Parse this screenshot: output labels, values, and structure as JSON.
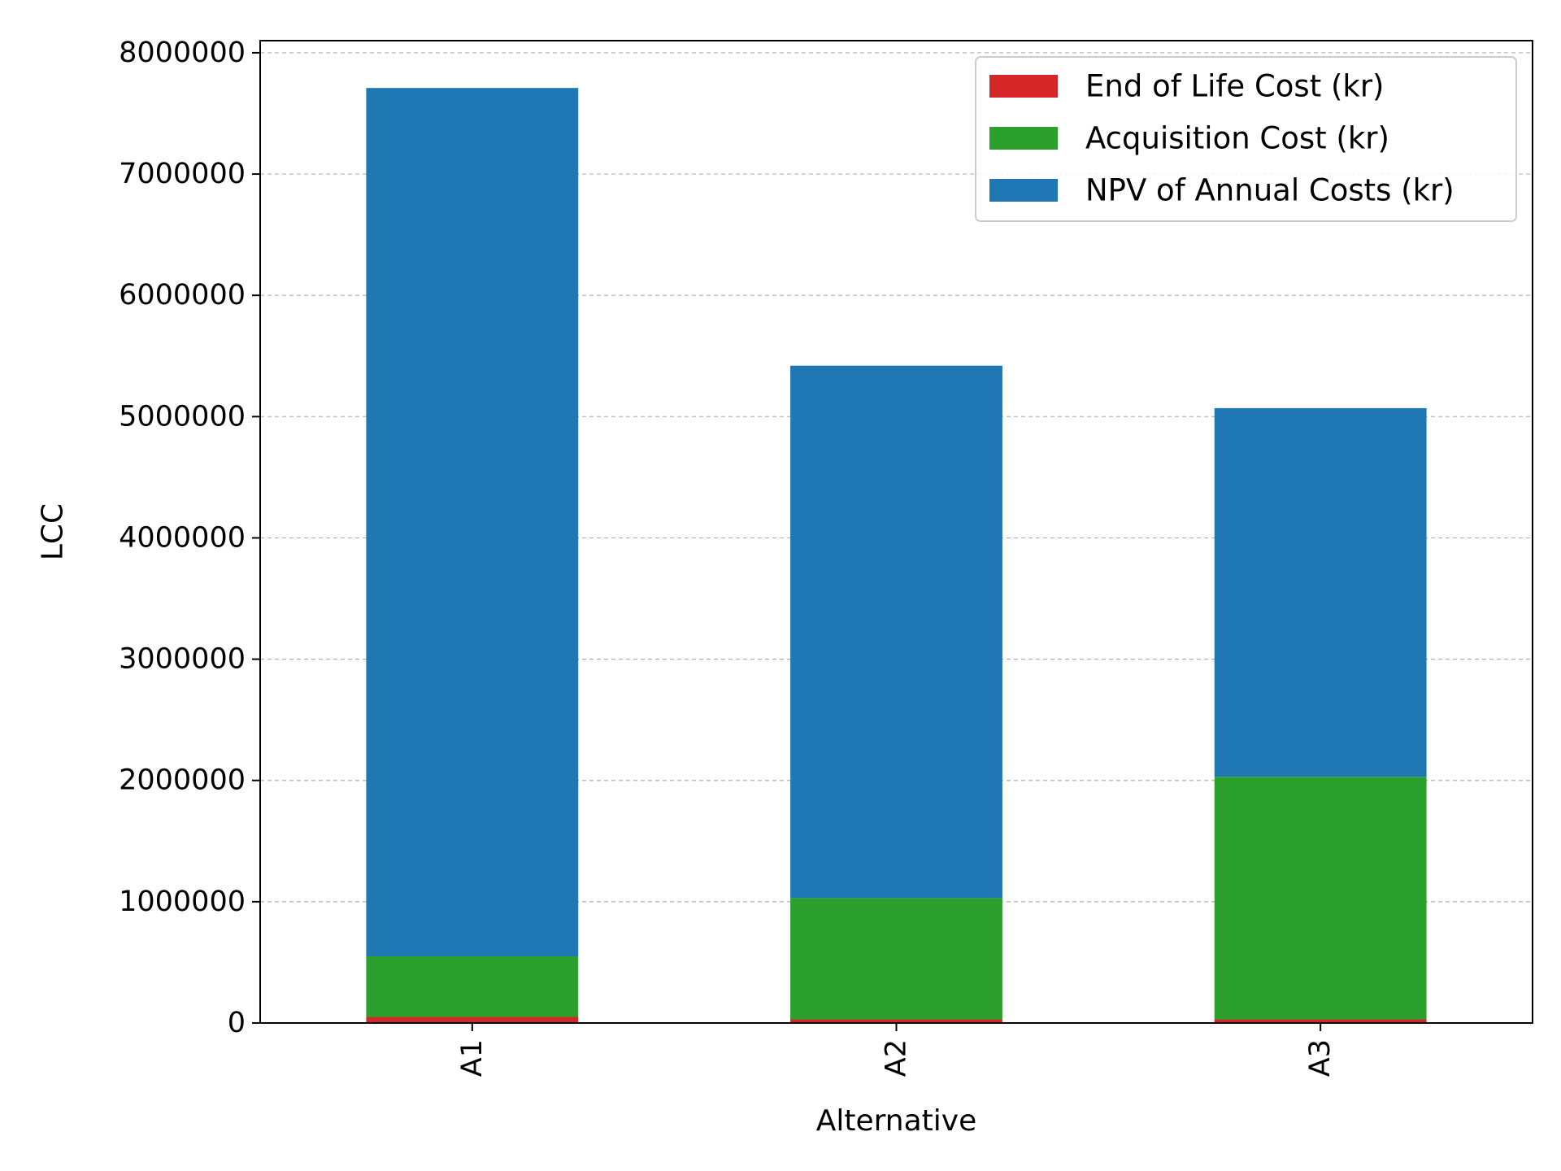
{
  "chart_data": {
    "type": "bar",
    "stacked": true,
    "xlabel": "Alternative",
    "ylabel": "LCC",
    "categories": [
      "A1",
      "A2",
      "A3"
    ],
    "ylim": [
      0,
      8100000
    ],
    "yticks": [
      0,
      1000000,
      2000000,
      3000000,
      4000000,
      5000000,
      6000000,
      7000000,
      8000000
    ],
    "ytick_labels": [
      "0",
      "1000000",
      "2000000",
      "3000000",
      "4000000",
      "5000000",
      "6000000",
      "7000000",
      "8000000"
    ],
    "grid": "horizontal dashed",
    "legend_position": "top-right",
    "series": [
      {
        "name": "End of Life Cost (kr)",
        "color": "#d62728",
        "values": [
          50000,
          30000,
          30000
        ]
      },
      {
        "name": "Acquisition Cost (kr)",
        "color": "#2ca02c",
        "values": [
          500000,
          1000000,
          2000000
        ]
      },
      {
        "name": "NPV of Annual Costs (kr)",
        "color": "#1f77b4",
        "values": [
          7160000,
          4390000,
          3040000
        ]
      }
    ]
  }
}
